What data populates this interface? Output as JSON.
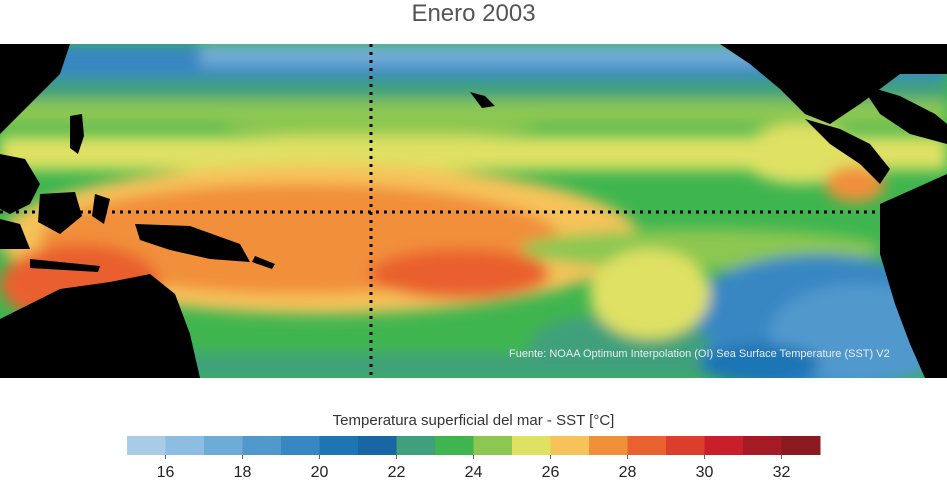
{
  "title": "Enero 2003",
  "source_note": "Fuente: NOAA Optimum Interpolation (OI) Sea Surface Temperature (SST) V2",
  "colorbar": {
    "label": "Temperatura superficial del mar - SST  [°C]",
    "min": 15,
    "max": 33,
    "step": 1,
    "tick_values": [
      16,
      18,
      20,
      22,
      24,
      26,
      28,
      30,
      32
    ],
    "tick_labels": [
      "16",
      "18",
      "20",
      "22",
      "24",
      "26",
      "28",
      "30",
      "32"
    ],
    "colors": [
      "#a8cbe6",
      "#8dbde0",
      "#6fabd7",
      "#5199cd",
      "#3787c3",
      "#1f74b5",
      "#1966a4",
      "#3fa07b",
      "#3fb54f",
      "#8cc751",
      "#dfe163",
      "#f6c35a",
      "#f18f3b",
      "#e9612e",
      "#dc3e2b",
      "#c81f2a",
      "#a51a24",
      "#8c1820"
    ]
  },
  "map": {
    "land_color": "#000000",
    "grid_line_color": "#000000"
  }
}
